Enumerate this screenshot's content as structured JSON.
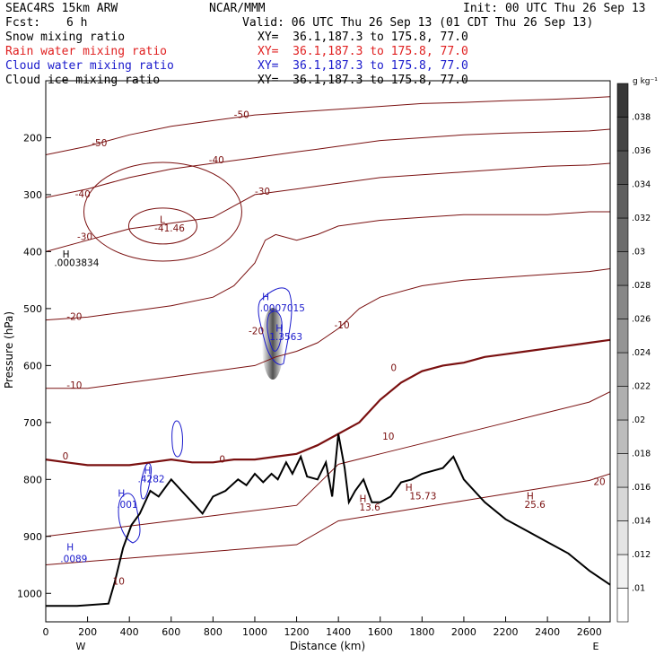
{
  "header": {
    "model": "SEAC4RS 15km ARW",
    "center": "NCAR/MMM",
    "init": "Init: 00 UTC Thu 26 Sep 13",
    "fcst_label": "Fcst:",
    "fcst_value": "6 h",
    "valid": "Valid: 06 UTC Thu 26 Sep 13 (01 CDT Thu 26 Sep 13)"
  },
  "fields": [
    {
      "name": "Snow mixing ratio",
      "xy": "XY=  36.1,187.3 to 175.8, 77.0",
      "color": "#000000"
    },
    {
      "name": "Rain water mixing ratio",
      "xy": "XY=  36.1,187.3 to 175.8, 77.0",
      "color": "#e02020"
    },
    {
      "name": "Cloud water mixing ratio",
      "xy": "XY=  36.1,187.3 to 175.8, 77.0",
      "color": "#1a1acc"
    },
    {
      "name": "Cloud ice mixing ratio",
      "xy": "XY=  36.1,187.3 to 175.8, 77.0",
      "color": "#000000"
    }
  ],
  "colors": {
    "isotherm": "#7a1010",
    "zero_isotherm": "#7a1010",
    "terrain": "#000000",
    "cloud_water": "#1a1acc"
  },
  "chart_data": {
    "type": "heatmap",
    "xlabel": "Distance (km)",
    "ylabel": "Pressure (hPa)",
    "xlim": [
      0,
      2700
    ],
    "ylim": [
      1050,
      100
    ],
    "x_ticks": [
      0,
      200,
      400,
      600,
      800,
      1000,
      1200,
      1400,
      1600,
      1800,
      2000,
      2200,
      2400,
      2600
    ],
    "y_ticks": [
      200,
      300,
      400,
      500,
      600,
      700,
      800,
      900,
      1000
    ],
    "end_labels": {
      "left": "W",
      "right": "E"
    },
    "colorbar": {
      "unit": "g kg⁻¹",
      "ticks": [
        ".01",
        ".012",
        ".014",
        ".016",
        ".018",
        ".02",
        ".022",
        ".024",
        ".026",
        ".028",
        ".03",
        ".032",
        ".034",
        ".036",
        ".038"
      ]
    },
    "terrain": {
      "x": [
        0,
        150,
        300,
        330,
        370,
        410,
        450,
        500,
        540,
        600,
        650,
        700,
        750,
        800,
        860,
        920,
        960,
        1000,
        1040,
        1080,
        1110,
        1150,
        1180,
        1220,
        1250,
        1300,
        1340,
        1370,
        1400,
        1430,
        1450,
        1480,
        1520,
        1560,
        1600,
        1650,
        1700,
        1750,
        1800,
        1850,
        1900,
        1950,
        2000,
        2100,
        2200,
        2300,
        2400,
        2500,
        2600,
        2700
      ],
      "p": [
        1022,
        1022,
        1018,
        980,
        920,
        880,
        860,
        820,
        830,
        800,
        820,
        840,
        860,
        830,
        820,
        800,
        810,
        790,
        805,
        790,
        800,
        770,
        790,
        760,
        795,
        800,
        770,
        830,
        720,
        780,
        840,
        820,
        800,
        840,
        840,
        830,
        805,
        800,
        790,
        785,
        780,
        760,
        800,
        840,
        870,
        890,
        910,
        930,
        960,
        985
      ]
    },
    "isotherms": [
      {
        "label": "0",
        "x": [
          0,
          100,
          200,
          300,
          400,
          500,
          600,
          700,
          800,
          900,
          1000,
          1100,
          1200,
          1300,
          1400,
          1500,
          1600,
          1700,
          1800,
          1900,
          2000,
          2100,
          2200,
          2300,
          2400,
          2500,
          2600,
          2700
        ],
        "p": [
          765,
          770,
          775,
          775,
          775,
          770,
          765,
          770,
          770,
          765,
          765,
          760,
          755,
          740,
          720,
          700,
          660,
          630,
          610,
          600,
          595,
          585,
          580,
          575,
          570,
          565,
          560,
          555
        ]
      },
      {
        "label": "-10",
        "x": [
          0,
          200,
          400,
          600,
          800,
          1000,
          1100,
          1200,
          1300,
          1400,
          1500,
          1600,
          1800,
          2000,
          2200,
          2400,
          2600,
          2700
        ],
        "p": [
          640,
          640,
          630,
          620,
          610,
          600,
          585,
          575,
          560,
          535,
          500,
          480,
          460,
          450,
          445,
          440,
          435,
          430
        ]
      },
      {
        "label": "-20",
        "x": [
          0,
          200,
          400,
          600,
          800,
          900,
          1000,
          1050,
          1100,
          1200,
          1300,
          1400,
          1600,
          1800,
          2000,
          2200,
          2400,
          2600,
          2700
        ],
        "p": [
          520,
          515,
          505,
          495,
          480,
          460,
          420,
          380,
          370,
          380,
          370,
          355,
          345,
          340,
          335,
          335,
          335,
          330,
          330
        ]
      },
      {
        "label": "-30",
        "x": [
          0,
          200,
          400,
          600,
          800,
          900,
          1000,
          1100,
          1200,
          1300,
          1400,
          1600,
          1800,
          2000,
          2200,
          2400,
          2600,
          2700
        ],
        "p": [
          400,
          380,
          360,
          350,
          340,
          320,
          300,
          295,
          290,
          285,
          280,
          270,
          265,
          260,
          255,
          250,
          248,
          245
        ]
      },
      {
        "label": "-40",
        "x": [
          0,
          200,
          400,
          600,
          800,
          900,
          1000,
          1100,
          1200,
          1300,
          1400,
          1600,
          1800,
          2000,
          2200,
          2400,
          2600,
          2700
        ],
        "p": [
          305,
          290,
          270,
          255,
          245,
          240,
          235,
          230,
          225,
          220,
          215,
          205,
          200,
          195,
          192,
          190,
          188,
          185
        ]
      },
      {
        "label": "-50",
        "x": [
          0,
          200,
          400,
          600,
          800,
          1000,
          1200,
          1400,
          1600,
          1800,
          2000,
          2200,
          2400,
          2600,
          2700
        ],
        "p": [
          230,
          215,
          195,
          180,
          170,
          160,
          155,
          150,
          145,
          140,
          138,
          135,
          133,
          130,
          128
        ]
      }
    ],
    "annotations": [
      {
        "text": "H",
        "x": 80,
        "p": 410
      },
      {
        "text": ".0003834",
        "x": 40,
        "p": 425
      },
      {
        "text": "L",
        "x": 545,
        "p": 350
      },
      {
        "text": "-41.46",
        "x": 520,
        "p": 365
      },
      {
        "text": "H",
        "x": 1035,
        "p": 485
      },
      {
        "text": ".0007015",
        "x": 1025,
        "p": 505
      },
      {
        "text": "H",
        "x": 1100,
        "p": 540
      },
      {
        "text": "1.3563",
        "x": 1070,
        "p": 555
      },
      {
        "text": "H",
        "x": 470,
        "p": 790
      },
      {
        "text": ".4282",
        "x": 440,
        "p": 805
      },
      {
        "text": "H",
        "x": 345,
        "p": 830
      },
      {
        "text": ".001",
        "x": 340,
        "p": 850
      },
      {
        "text": "H",
        "x": 100,
        "p": 925
      },
      {
        "text": ".0089",
        "x": 70,
        "p": 945
      },
      {
        "text": "H",
        "x": 1500,
        "p": 840
      },
      {
        "text": "13.6",
        "x": 1500,
        "p": 855
      },
      {
        "text": "H",
        "x": 1720,
        "p": 820
      },
      {
        "text": "15.73",
        "x": 1740,
        "p": 835
      },
      {
        "text": "H",
        "x": 2300,
        "p": 835
      },
      {
        "text": "25.6",
        "x": 2290,
        "p": 850
      },
      {
        "text": "10",
        "x": 320,
        "p": 985
      },
      {
        "text": "10",
        "x": 1610,
        "p": 730
      },
      {
        "text": "20",
        "x": 2620,
        "p": 810
      },
      {
        "text": "0",
        "x": 80,
        "p": 765
      },
      {
        "text": "0",
        "x": 830,
        "p": 770
      },
      {
        "text": "0",
        "x": 1650,
        "p": 610
      },
      {
        "text": "-10",
        "x": 100,
        "p": 640
      },
      {
        "text": "-10",
        "x": 1380,
        "p": 535
      },
      {
        "text": "-20",
        "x": 100,
        "p": 520
      },
      {
        "text": "-20",
        "x": 970,
        "p": 545
      },
      {
        "text": "-30",
        "x": 150,
        "p": 380
      },
      {
        "text": "-30",
        "x": 1000,
        "p": 300
      },
      {
        "text": "-40",
        "x": 140,
        "p": 305
      },
      {
        "text": "-40",
        "x": 780,
        "p": 245
      },
      {
        "text": "-50",
        "x": 220,
        "p": 215
      },
      {
        "text": "-50",
        "x": 900,
        "p": 165
      }
    ]
  }
}
